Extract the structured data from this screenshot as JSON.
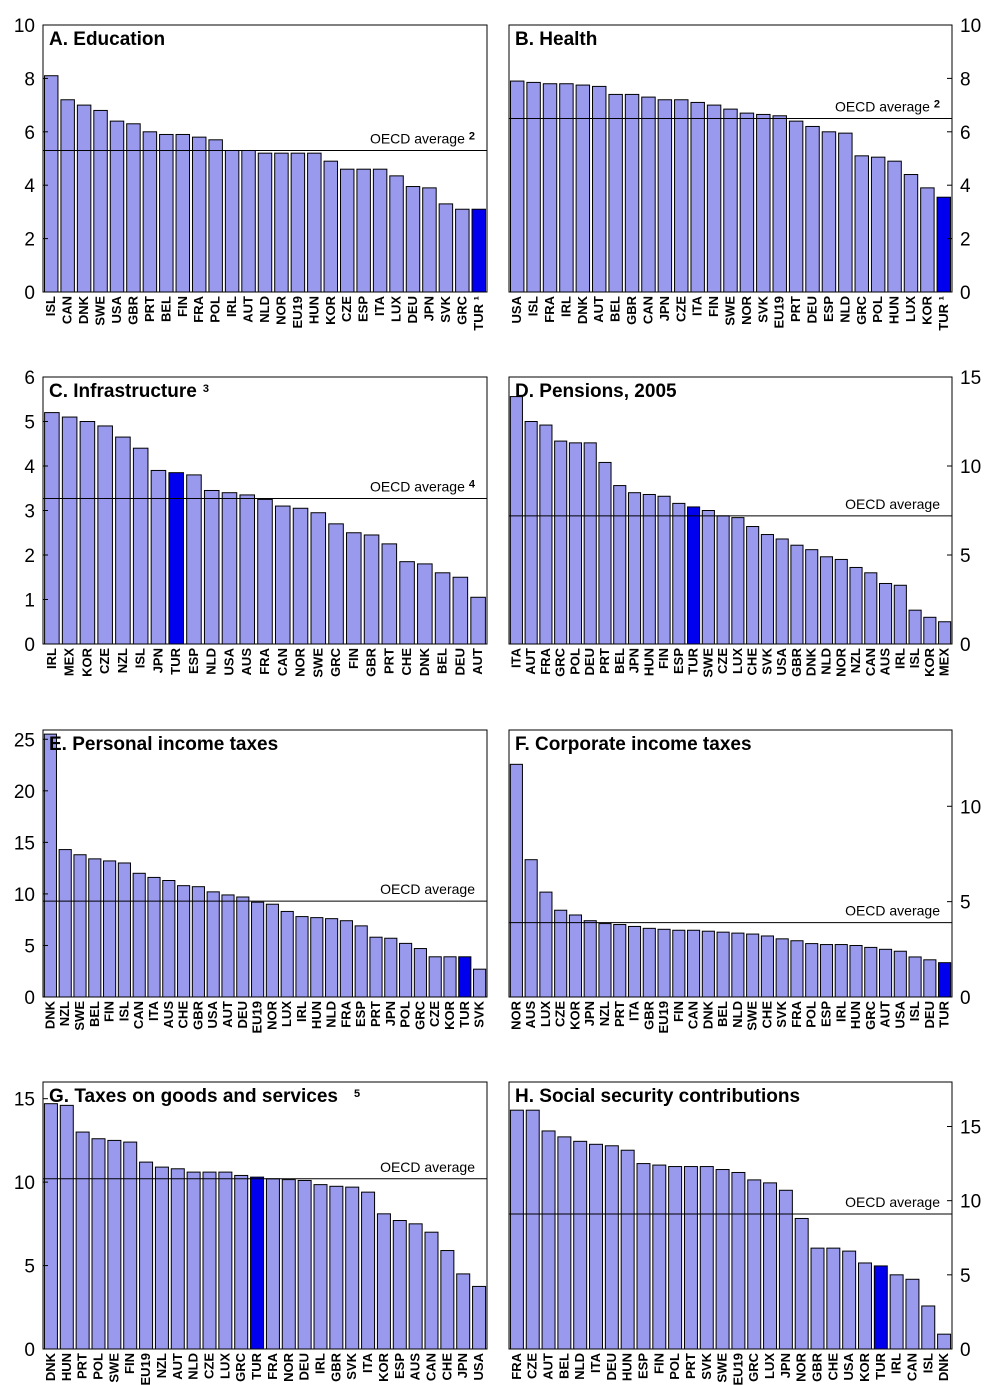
{
  "chart_data": [
    {
      "id": "A",
      "type": "bar",
      "title": "A. Education",
      "title_note": "",
      "ylim": [
        0,
        10
      ],
      "yticks": [
        0,
        2,
        4,
        6,
        8,
        10
      ],
      "ytick_labels": [
        "0",
        "2",
        "4",
        "6",
        "8",
        "10"
      ],
      "axis_side": "left",
      "categories": [
        "ISL",
        "CAN",
        "DNK",
        "SWE",
        "USA",
        "GBR",
        "PRT",
        "BEL",
        "FIN",
        "FRA",
        "POL",
        "IRL",
        "AUT",
        "NLD",
        "NOR",
        "EU19",
        "HUN",
        "KOR",
        "CZE",
        "ESP",
        "ITA",
        "LUX",
        "DEU",
        "JPN",
        "SVK",
        "GRC",
        "TUR ¹"
      ],
      "values": [
        8.1,
        7.2,
        7.0,
        6.8,
        6.4,
        6.3,
        6.0,
        5.9,
        5.9,
        5.8,
        5.7,
        5.3,
        5.3,
        5.2,
        5.2,
        5.2,
        5.2,
        4.9,
        4.6,
        4.6,
        4.6,
        4.35,
        3.95,
        3.9,
        3.3,
        3.1,
        3.1
      ],
      "highlight": [
        "TUR ¹"
      ],
      "reference_line": {
        "label": "OECD average",
        "note": "2",
        "value": 5.3
      }
    },
    {
      "id": "B",
      "type": "bar",
      "title": "B. Health",
      "title_note": "",
      "ylim": [
        0,
        10
      ],
      "yticks": [
        0,
        2,
        4,
        6,
        8,
        10
      ],
      "ytick_labels": [
        "0",
        "2",
        "4",
        "6",
        "8",
        "10"
      ],
      "axis_side": "right",
      "categories": [
        "USA",
        "ISL",
        "FRA",
        "IRL",
        "DNK",
        "AUT",
        "BEL",
        "GBR",
        "CAN",
        "JPN",
        "CZE",
        "ITA",
        "FIN",
        "SWE",
        "NOR",
        "SVK",
        "EU19",
        "PRT",
        "DEU",
        "ESP",
        "NLD",
        "GRC",
        "POL",
        "HUN",
        "LUX",
        "KOR",
        "TUR ¹"
      ],
      "values": [
        7.9,
        7.85,
        7.8,
        7.8,
        7.75,
        7.7,
        7.4,
        7.4,
        7.3,
        7.2,
        7.2,
        7.1,
        7.0,
        6.85,
        6.7,
        6.65,
        6.6,
        6.4,
        6.2,
        6.0,
        5.95,
        5.1,
        5.05,
        4.9,
        4.4,
        3.9,
        3.55
      ],
      "highlight": [
        "TUR ¹"
      ],
      "reference_line": {
        "label": "OECD average",
        "note": "2",
        "value": 6.5
      }
    },
    {
      "id": "C",
      "type": "bar",
      "title": "C. Infrastructure",
      "title_note": "3",
      "ylim": [
        0,
        6
      ],
      "yticks": [
        0,
        1,
        2,
        3,
        4,
        5,
        6
      ],
      "ytick_labels": [
        "0",
        "1",
        "2",
        "3",
        "4",
        "5",
        "6"
      ],
      "axis_side": "left",
      "categories": [
        "IRL",
        "MEX",
        "KOR",
        "CZE",
        "NZL",
        "ISL",
        "JPN",
        "TUR",
        "ESP",
        "NLD",
        "USA",
        "AUS",
        "FRA",
        "CAN",
        "NOR",
        "SWE",
        "GRC",
        "FIN",
        "GBR",
        "PRT",
        "CHE",
        "DNK",
        "BEL",
        "DEU",
        "AUT"
      ],
      "values": [
        5.2,
        5.1,
        5.0,
        4.9,
        4.65,
        4.4,
        3.9,
        3.85,
        3.8,
        3.45,
        3.4,
        3.35,
        3.25,
        3.1,
        3.05,
        2.95,
        2.7,
        2.5,
        2.45,
        2.25,
        1.85,
        1.8,
        1.6,
        1.5,
        1.05
      ],
      "highlight": [
        "TUR"
      ],
      "reference_line": {
        "label": "OECD average",
        "note": "4",
        "value": 3.27
      }
    },
    {
      "id": "D",
      "type": "bar",
      "title": "D. Pensions, 2005",
      "title_note": "",
      "ylim": [
        0,
        15
      ],
      "yticks": [
        0,
        5,
        10,
        15
      ],
      "ytick_labels": [
        "0",
        "5",
        "10",
        "15"
      ],
      "axis_side": "right",
      "categories": [
        "ITA",
        "AUT",
        "FRA",
        "GRC",
        "POL",
        "DEU",
        "PRT",
        "BEL",
        "JPN",
        "HUN",
        "FIN",
        "ESP",
        "TUR",
        "SWE",
        "CZE",
        "LUX",
        "CHE",
        "SVK",
        "USA",
        "GBR",
        "DNK",
        "NLD",
        "NOR",
        "NZL",
        "CAN",
        "AUS",
        "IRL",
        "ISL",
        "KOR",
        "MEX"
      ],
      "values": [
        13.9,
        12.5,
        12.3,
        11.4,
        11.3,
        11.3,
        10.2,
        8.9,
        8.5,
        8.4,
        8.3,
        7.9,
        7.7,
        7.5,
        7.2,
        7.1,
        6.6,
        6.15,
        5.9,
        5.55,
        5.3,
        4.9,
        4.75,
        4.3,
        4.0,
        3.4,
        3.3,
        1.9,
        1.5,
        1.25
      ],
      "highlight": [
        "TUR"
      ],
      "reference_line": {
        "label": "OECD average",
        "note": "",
        "value": 7.2
      }
    },
    {
      "id": "E",
      "type": "bar",
      "title": "E. Personal income taxes",
      "title_note": "",
      "ylim": [
        0,
        25.9
      ],
      "yticks": [
        0,
        5,
        10,
        15,
        20,
        25
      ],
      "ytick_labels": [
        "0",
        "5",
        "10",
        "15",
        "20",
        "25"
      ],
      "axis_side": "left",
      "categories": [
        "DNK",
        "NZL",
        "SWE",
        "BEL",
        "FIN",
        "ISL",
        "CAN",
        "ITA",
        "AUS",
        "CHE",
        "GBR",
        "USA",
        "AUT",
        "DEU",
        "EU19",
        "NOR",
        "LUX",
        "IRL",
        "HUN",
        "NLD",
        "FRA",
        "ESP",
        "PRT",
        "JPN",
        "POL",
        "GRC",
        "CZE",
        "KOR",
        "TUR",
        "SVK"
      ],
      "values": [
        25.5,
        14.3,
        13.8,
        13.4,
        13.2,
        13.0,
        12.0,
        11.6,
        11.3,
        10.8,
        10.7,
        10.2,
        9.9,
        9.7,
        9.2,
        9.0,
        8.3,
        7.8,
        7.7,
        7.6,
        7.4,
        6.9,
        5.8,
        5.7,
        5.2,
        4.7,
        3.9,
        3.9,
        3.9,
        2.7
      ],
      "highlight": [
        "TUR"
      ],
      "reference_line": {
        "label": "OECD average",
        "note": "",
        "value": 9.3
      }
    },
    {
      "id": "F",
      "type": "bar",
      "title": "F. Corporate income taxes",
      "title_note": "",
      "ylim": [
        0,
        14
      ],
      "yticks": [
        0,
        5,
        10
      ],
      "ytick_labels": [
        "0",
        "5",
        "10"
      ],
      "axis_side": "right",
      "categories": [
        "NOR",
        "AUS",
        "LUX",
        "CZE",
        "KOR",
        "JPN",
        "NZL",
        "PRT",
        "ITA",
        "GBR",
        "EU19",
        "FIN",
        "CAN",
        "DNK",
        "BEL",
        "NLD",
        "SWE",
        "CHE",
        "SVK",
        "FRA",
        "POL",
        "ESP",
        "IRL",
        "HUN",
        "GRC",
        "AUT",
        "USA",
        "ISL",
        "DEU",
        "TUR"
      ],
      "values": [
        12.2,
        7.2,
        5.5,
        4.55,
        4.3,
        4.0,
        3.85,
        3.8,
        3.7,
        3.6,
        3.55,
        3.5,
        3.5,
        3.45,
        3.4,
        3.35,
        3.3,
        3.2,
        3.05,
        2.95,
        2.8,
        2.75,
        2.75,
        2.7,
        2.6,
        2.5,
        2.4,
        2.1,
        1.95,
        1.8
      ],
      "highlight": [
        "TUR"
      ],
      "reference_line": {
        "label": "OECD average",
        "note": "",
        "value": 3.9
      }
    },
    {
      "id": "G",
      "type": "bar",
      "title": "G. Taxes on goods and services",
      "title_note": "5",
      "ylim": [
        0,
        16
      ],
      "yticks": [
        0,
        5,
        10,
        15
      ],
      "ytick_labels": [
        "0",
        "5",
        "10",
        "15"
      ],
      "axis_side": "left",
      "categories": [
        "DNK",
        "HUN",
        "PRT",
        "POL",
        "SWE",
        "FIN",
        "EU19",
        "NZL",
        "AUT",
        "NLD",
        "CZE",
        "LUX",
        "GRC",
        "TUR",
        "FRA",
        "NOR",
        "DEU",
        "IRL",
        "GBR",
        "SVK",
        "ITA",
        "KOR",
        "ESP",
        "AUS",
        "CAN",
        "CHE",
        "JPN",
        "USA"
      ],
      "values": [
        14.7,
        14.6,
        13.0,
        12.6,
        12.5,
        12.4,
        11.2,
        10.9,
        10.8,
        10.6,
        10.6,
        10.6,
        10.4,
        10.3,
        10.2,
        10.15,
        10.1,
        9.85,
        9.75,
        9.7,
        9.4,
        8.1,
        7.7,
        7.5,
        7.0,
        5.9,
        4.5,
        3.75
      ],
      "highlight": [
        "TUR"
      ],
      "reference_line": {
        "label": "OECD average",
        "note": "",
        "value": 10.2
      }
    },
    {
      "id": "H",
      "type": "bar",
      "title": "H. Social security contributions",
      "title_note": "",
      "ylim": [
        0,
        18
      ],
      "yticks": [
        0,
        5,
        10,
        15
      ],
      "ytick_labels": [
        "0",
        "5",
        "10",
        "15"
      ],
      "axis_side": "right",
      "categories": [
        "FRA",
        "CZE",
        "AUT",
        "BEL",
        "NLD",
        "ITA",
        "DEU",
        "HUN",
        "ESP",
        "FIN",
        "POL",
        "PRT",
        "SVK",
        "SWE",
        "EU19",
        "GRC",
        "LUX",
        "JPN",
        "NOR",
        "GBR",
        "CHE",
        "USA",
        "KOR",
        "TUR",
        "IRL",
        "CAN",
        "ISL",
        "DNK"
      ],
      "values": [
        16.1,
        16.1,
        14.7,
        14.3,
        14.0,
        13.8,
        13.7,
        13.4,
        12.5,
        12.4,
        12.3,
        12.3,
        12.3,
        12.1,
        11.9,
        11.4,
        11.2,
        10.7,
        8.8,
        6.8,
        6.8,
        6.6,
        5.8,
        5.6,
        5.0,
        4.7,
        2.9,
        1.0
      ],
      "highlight": [
        "TUR"
      ],
      "reference_line": {
        "label": "OECD average",
        "note": "",
        "value": 9.1
      }
    }
  ]
}
